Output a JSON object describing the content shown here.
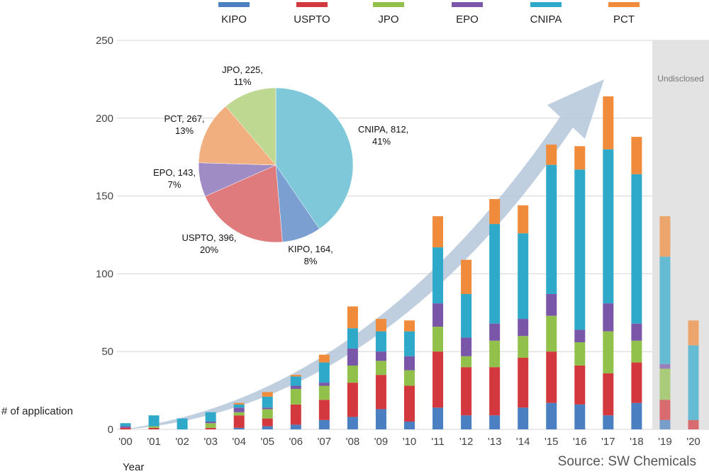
{
  "chart_data": [
    {
      "type": "bar",
      "stacked": true,
      "ylabel": "# of application",
      "xlabel": "Year",
      "ylim": [
        0,
        250
      ],
      "yticks": [
        0,
        50,
        100,
        150,
        200,
        250
      ],
      "grid": true,
      "legend_position": "top",
      "categories": [
        "'00",
        "'01",
        "'02",
        "'03",
        "'04",
        "'05",
        "'06",
        "'07",
        "'08",
        "'09",
        "'10",
        "'11",
        "'12",
        "'13",
        "'14",
        "'15",
        "'16",
        "'17",
        "'18",
        "'19",
        "'20"
      ],
      "series": [
        {
          "name": "KIPO",
          "color": "#4a7fc1",
          "values": [
            0,
            0,
            0,
            0,
            1,
            2,
            3,
            6,
            8,
            13,
            5,
            14,
            9,
            9,
            14,
            17,
            16,
            9,
            17,
            6,
            0
          ]
        },
        {
          "name": "USPTO",
          "color": "#d3383e",
          "values": [
            1,
            1,
            0,
            1,
            8,
            5,
            13,
            13,
            22,
            22,
            23,
            36,
            31,
            31,
            32,
            33,
            25,
            27,
            26,
            13,
            6
          ]
        },
        {
          "name": "JPO",
          "color": "#92c14b",
          "values": [
            0,
            1,
            0,
            3,
            2,
            6,
            10,
            9,
            11,
            9,
            10,
            16,
            7,
            17,
            14,
            23,
            15,
            27,
            14,
            20,
            0
          ]
        },
        {
          "name": "EPO",
          "color": "#7a56a8",
          "values": [
            1,
            0,
            0,
            1,
            3,
            1,
            2,
            2,
            11,
            6,
            9,
            15,
            12,
            11,
            11,
            14,
            8,
            18,
            11,
            3,
            0
          ]
        },
        {
          "name": "CNIPA",
          "color": "#2fa9c9",
          "values": [
            2,
            7,
            7,
            6,
            2,
            7,
            6,
            13,
            13,
            13,
            16,
            36,
            28,
            64,
            55,
            83,
            103,
            99,
            96,
            69,
            48
          ]
        },
        {
          "name": "PCT",
          "color": "#ef8b3a",
          "values": [
            0,
            0,
            0,
            0,
            1,
            3,
            1,
            5,
            14,
            8,
            7,
            20,
            22,
            16,
            18,
            13,
            15,
            34,
            24,
            26,
            16
          ]
        }
      ],
      "shaded_region": {
        "categories": [
          "'19",
          "'20"
        ],
        "label": "Undisclosed"
      },
      "annotation": "Source: SW Chemicals"
    },
    {
      "type": "pie",
      "slices": [
        {
          "name": "CNIPA",
          "value": 812,
          "percent": "41%",
          "color": "#7ec8da",
          "label_line1": "CNIPA, 812,",
          "label_line2": "41%"
        },
        {
          "name": "KIPO",
          "value": 164,
          "percent": "8%",
          "color": "#7b9fd0",
          "label_line1": "KIPO, 164,",
          "label_line2": "8%"
        },
        {
          "name": "USPTO",
          "value": 396,
          "percent": "20%",
          "color": "#e07b7d",
          "label_line1": "USPTO, 396,",
          "label_line2": "20%"
        },
        {
          "name": "EPO",
          "value": 143,
          "percent": "7%",
          "color": "#a08cc4",
          "label_line1": "EPO, 143,",
          "label_line2": "7%"
        },
        {
          "name": "PCT",
          "value": 267,
          "percent": "13%",
          "color": "#f1ae7e",
          "label_line1": "PCT, 267,",
          "label_line2": "13%"
        },
        {
          "name": "JPO",
          "value": 225,
          "percent": "11%",
          "color": "#bfd891",
          "label_line1": "JPO, 225,",
          "label_line2": "11%"
        }
      ]
    }
  ]
}
